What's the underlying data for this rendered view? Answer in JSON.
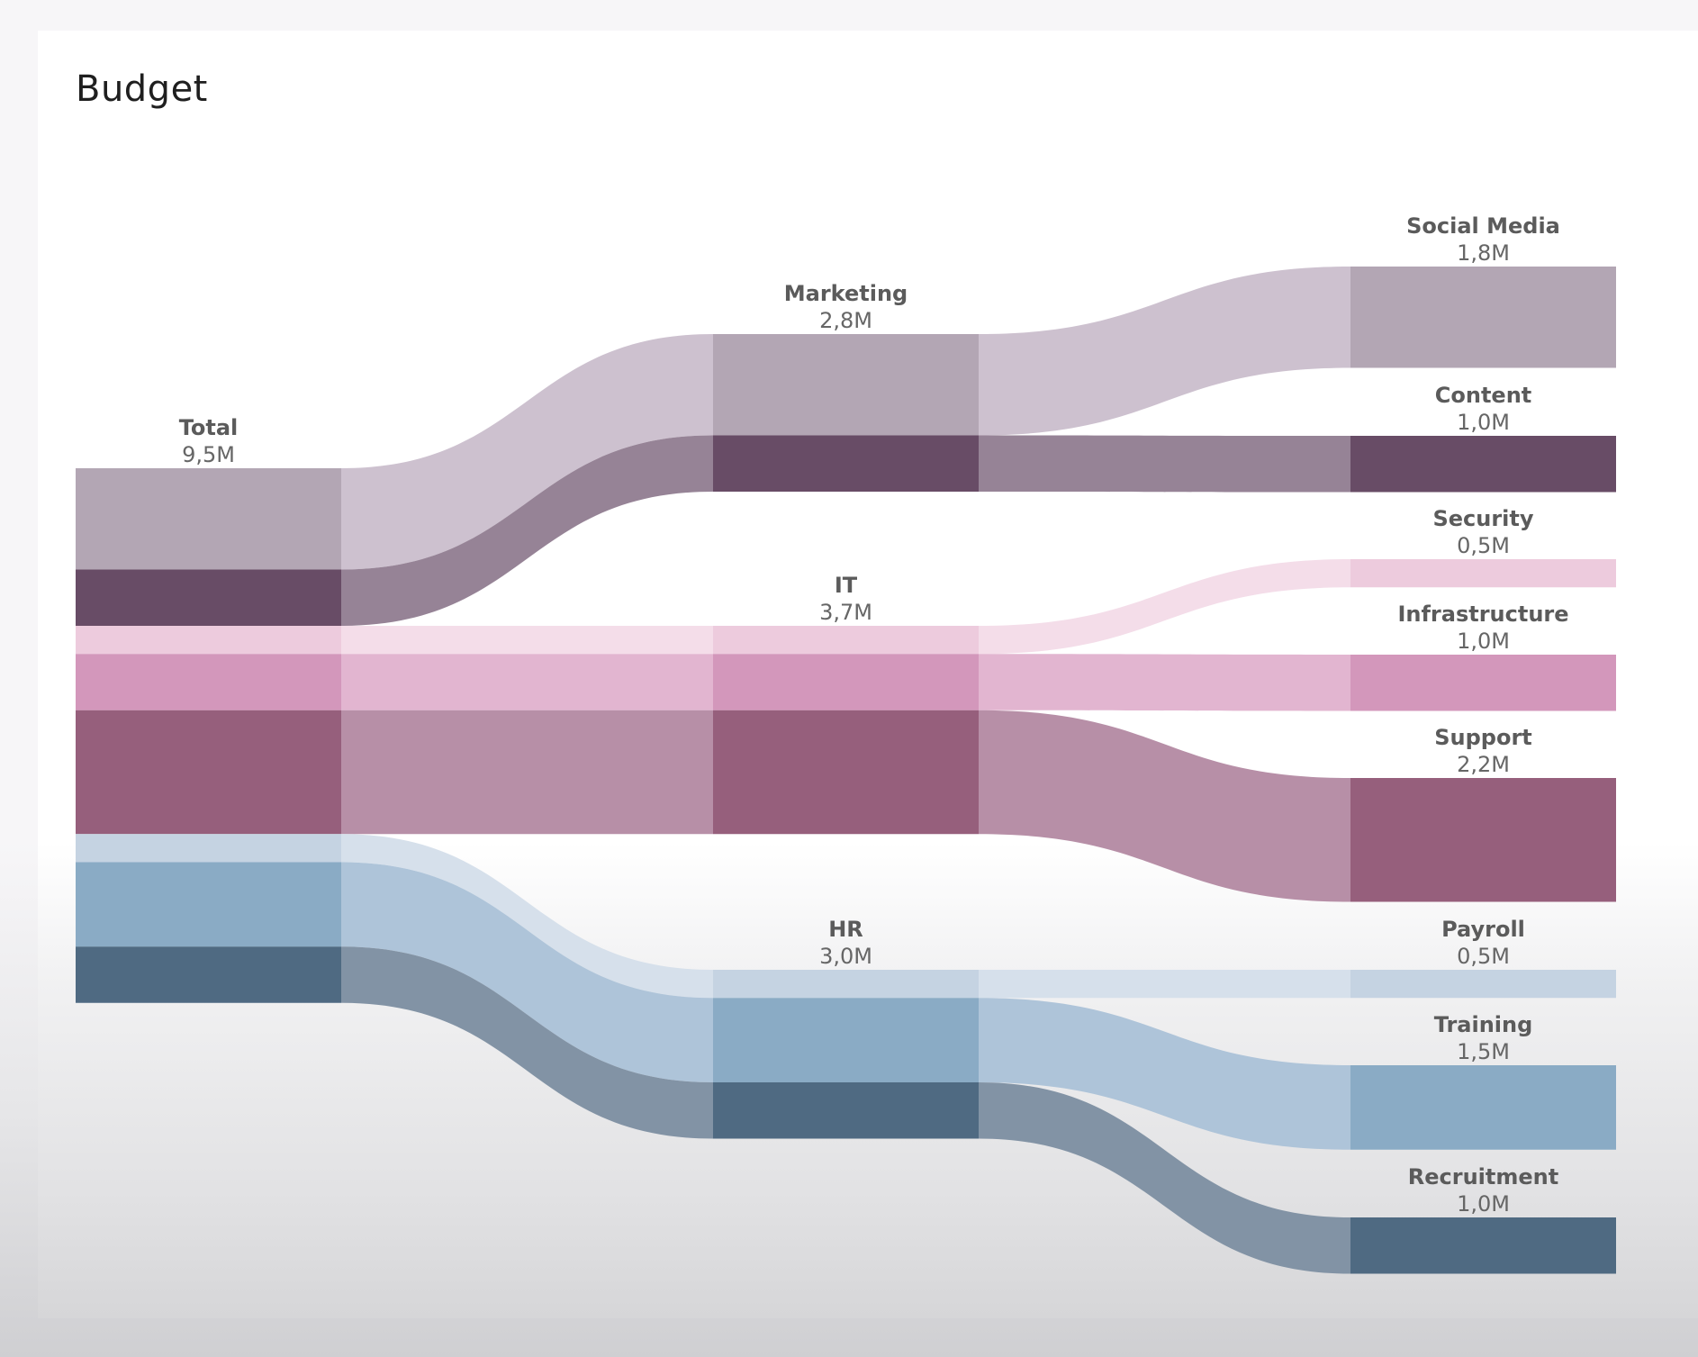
{
  "chart_data": {
    "type": "sankey",
    "title": "Budget",
    "columns": [
      [
        "Total"
      ],
      [
        "Marketing",
        "IT",
        "HR"
      ],
      [
        "Social Media",
        "Content",
        "Security",
        "Infrastructure",
        "Support",
        "Payroll",
        "Training",
        "Recruitment"
      ]
    ],
    "nodes": [
      {
        "id": "Total",
        "label": "Total",
        "value_label": "9,5M",
        "value": 9.5
      },
      {
        "id": "Marketing",
        "label": "Marketing",
        "value_label": "2,8M",
        "value": 2.8
      },
      {
        "id": "IT",
        "label": "IT",
        "value_label": "3,7M",
        "value": 3.7
      },
      {
        "id": "HR",
        "label": "HR",
        "value_label": "3,0M",
        "value": 3.0
      },
      {
        "id": "Social Media",
        "label": "Social Media",
        "value_label": "1,8M",
        "value": 1.8
      },
      {
        "id": "Content",
        "label": "Content",
        "value_label": "1,0M",
        "value": 1.0
      },
      {
        "id": "Security",
        "label": "Security",
        "value_label": "0,5M",
        "value": 0.5
      },
      {
        "id": "Infrastructure",
        "label": "Infrastructure",
        "value_label": "1,0M",
        "value": 1.0
      },
      {
        "id": "Support",
        "label": "Support",
        "value_label": "2,2M",
        "value": 2.2
      },
      {
        "id": "Payroll",
        "label": "Payroll",
        "value_label": "0,5M",
        "value": 0.5
      },
      {
        "id": "Training",
        "label": "Training",
        "value_label": "1,5M",
        "value": 1.5
      },
      {
        "id": "Recruitment",
        "label": "Recruitment",
        "value_label": "1,0M",
        "value": 1.0
      }
    ],
    "segments": [
      {
        "category": "Social Media",
        "group": "Marketing",
        "value": 1.8,
        "color": "#b3a6b4",
        "link_color": "#cdc1cf"
      },
      {
        "category": "Content",
        "group": "Marketing",
        "value": 1.0,
        "color": "#684c66",
        "link_color": "#968396"
      },
      {
        "category": "Security",
        "group": "IT",
        "value": 0.5,
        "color": "#edcbdd",
        "link_color": "#f4dde9"
      },
      {
        "category": "Infrastructure",
        "group": "IT",
        "value": 1.0,
        "color": "#d397bb",
        "link_color": "#e2b5d0"
      },
      {
        "category": "Support",
        "group": "IT",
        "value": 2.2,
        "color": "#965f7c",
        "link_color": "#b78fa7"
      },
      {
        "category": "Payroll",
        "group": "HR",
        "value": 0.5,
        "color": "#c5d3e2",
        "link_color": "#d6e0eb"
      },
      {
        "category": "Training",
        "group": "HR",
        "value": 1.5,
        "color": "#8aabc5",
        "link_color": "#aec4d9"
      },
      {
        "category": "Recruitment",
        "group": "HR",
        "value": 1.0,
        "color": "#4f6a82",
        "link_color": "#8293a5"
      }
    ]
  }
}
